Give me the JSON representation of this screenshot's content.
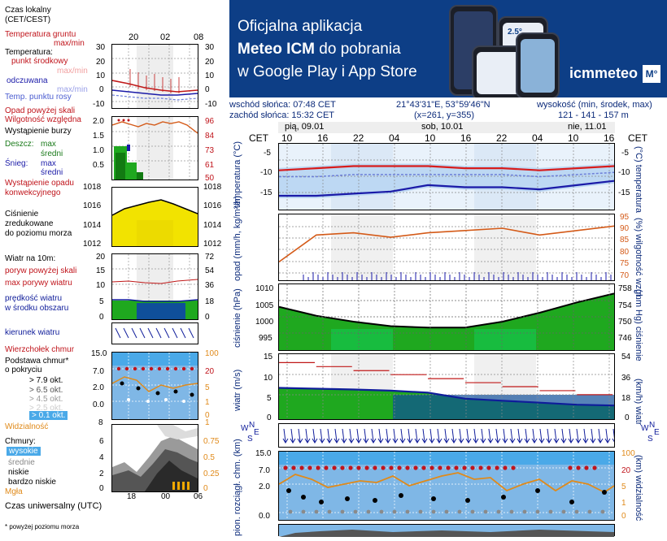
{
  "legend": {
    "local_time": "Czas lokalny",
    "local_time_zone": "(CET/CEST)",
    "hours_top": [
      "20",
      "02",
      "08"
    ],
    "ground_temp": "Temperatura gruntu",
    "ground_temp_unit": "max/min",
    "temperature": "Temperatura:",
    "center_point": "punkt środkowy",
    "center_point_sub": "max/min",
    "feels_like": "odczuwana",
    "feels_like_sub": "max/min",
    "dew_point": "Temp. punktu rosy",
    "temp_left_ticks": [
      "30",
      "20",
      "10",
      "0",
      "-10"
    ],
    "temp_right_ticks": [
      "30",
      "20",
      "10",
      "0",
      "-10"
    ],
    "precip_above": "Opad powyżej skali",
    "humidity": "Wilgotność względna",
    "storm": "Wystąpienie burzy",
    "rain": "Deszcz:",
    "rain_max": "max",
    "rain_mean": "średni",
    "snow": "Śnieg:",
    "snow_max": "max",
    "snow_mean": "średni",
    "convective": "Wystąpienie opadu",
    "convective2": "konwekcyjnego",
    "precip_left_ticks": [
      "2.0",
      "1.5",
      "1.0",
      "0.5"
    ],
    "precip_right_ticks": [
      "96",
      "84",
      "73",
      "61",
      "50"
    ],
    "pressure_ticks": [
      "1018",
      "1016",
      "1014",
      "1012"
    ],
    "pressure_line1": "Ciśnienie",
    "pressure_line2": "zredukowane",
    "pressure_line3": "do poziomu morza",
    "wind_10m": "Wiatr na 10m:",
    "gust_above": "poryw powyżej skali",
    "max_gust": "max porywy wiatru",
    "wind_speed": "prędkość wiatru",
    "wind_area": "w środku obszaru",
    "wind_left_ticks": [
      "20",
      "15",
      "10",
      "5",
      "0"
    ],
    "wind_right_ticks": [
      "72",
      "54",
      "36",
      "18",
      "0"
    ],
    "wind_dir": "kierunek wiatru",
    "cloud_top": "Wierzchołek chmur",
    "cloud_base1": "Podstawa chmur*",
    "cloud_base2": "o pokryciu",
    "okt_levels": [
      "> 7.9 okt.",
      "> 6.5 okt.",
      "> 4.5 okt.",
      "> 2.5 okt.",
      "> 0.1 okt."
    ],
    "cloud_left_ticks": [
      "15.0",
      "7.0",
      "2.0",
      "0.0"
    ],
    "cloud_right_ticks": [
      "100",
      "20",
      "5",
      "1",
      "0"
    ],
    "visibility": "Widzialność",
    "vis_left_tick": "8",
    "vis_right_tick": "1",
    "clouds": "Chmury:",
    "cloud_layers": [
      "wysokie",
      "średnie",
      "niskie",
      "bardzo niskie"
    ],
    "fog": "Mgła",
    "clouds_left_ticks": [
      "6",
      "4",
      "2",
      "0"
    ],
    "clouds_right_ticks": [
      "0.75",
      "0.5",
      "0.25",
      "0"
    ],
    "utc_label": "Czas uniwersalny (UTC)",
    "utc_ticks": [
      "18",
      "00",
      "06"
    ],
    "footnote": "* powyżej poziomu morza"
  },
  "banner": {
    "line1": "Oficjalna aplikacja",
    "line2_bold": "Meteo ICM",
    "line2_rest": " do pobrania",
    "line3": "w Google Play i App Store",
    "brand": "icmmeteo",
    "brand_badge": "M°",
    "phone_temp": "2.5°"
  },
  "meta": {
    "sunrise": "wschód słońca: 07:48 CET",
    "sunset": "zachód słońca: 15:32 CET",
    "coords": "21°43'31\"E, 53°59'46\"N",
    "grid": "(x=261, y=355)",
    "elevation_title": "wysokość (min, środek, max)",
    "elevation_values": "121 - 141 - 157 m"
  },
  "timeline": {
    "tz": "CET",
    "days": [
      "pią, 09.01",
      "sob, 10.01",
      "nie, 11.01"
    ],
    "hours": [
      "10",
      "16",
      "22",
      "04",
      "10",
      "16",
      "22",
      "04",
      "10",
      "16"
    ]
  },
  "panels": {
    "temperature": {
      "left_label": "temperatura",
      "left_unit": "(°C)",
      "right_label": "temperatura",
      "right_unit": "(°C)",
      "ticks_right": [
        "-5",
        "-10",
        "-15"
      ],
      "ticks_right2": [
        "-5",
        "-10",
        "-15"
      ]
    },
    "precip": {
      "left_label": "opad",
      "left_unit": "(mm/h, kg/m²/h)",
      "right_label": "wilgotność wzgl.",
      "right_unit": "(%)",
      "ticks_right": [
        "95",
        "90",
        "85",
        "80",
        "75",
        "70"
      ]
    },
    "pressure": {
      "left_label": "ciśnienie",
      "left_unit": "(hPa)",
      "right_label": "ciśnienie",
      "right_unit": "(mm Hg)",
      "ticks_left": [
        "1010",
        "1005",
        "1000",
        "995"
      ],
      "ticks_right": [
        "758",
        "754",
        "750",
        "746"
      ]
    },
    "wind": {
      "left_label": "wiatr",
      "left_unit": "(m/s)",
      "right_label": "wiatr",
      "right_unit": "(km/h)",
      "ticks_left": [
        "15",
        "10",
        "5",
        "0"
      ],
      "ticks_right": [
        "54",
        "36",
        "18",
        "0"
      ]
    },
    "compass": {
      "n": "N",
      "w": "W",
      "e": "E",
      "s": "S"
    },
    "cloudbase": {
      "left_label": "podst. chm",
      "left_unit": "(km)",
      "left_label2": "pion. rozciągł. chm.",
      "right_label": "widzialność",
      "right_unit": "(km)",
      "ticks_left": [
        "15.0",
        "7.0",
        "2.0",
        "0.0"
      ],
      "ticks_right": [
        "100",
        "20",
        "5",
        "1",
        "0"
      ]
    }
  },
  "chart_data": [
    {
      "type": "line",
      "title": "temperatura",
      "ylabel": "temperatura (°C)",
      "ylim": [
        -17,
        -3
      ],
      "x": [
        "10",
        "16",
        "22",
        "04",
        "10",
        "16",
        "22",
        "04",
        "10",
        "16"
      ],
      "series": [
        {
          "name": "punkt środkowy",
          "color": "#d81c1c",
          "values": [
            -8.5,
            -8.0,
            -7.5,
            -7.5,
            -7.5,
            -8.0,
            -8.0,
            -8.5,
            -8.0,
            -7.5
          ]
        },
        {
          "name": "odczuwana",
          "color": "#1a1aa8",
          "values": [
            -14.5,
            -14.5,
            -14.0,
            -13.5,
            -12.0,
            -12.5,
            -12.5,
            -13.0,
            -12.0,
            -11.0
          ]
        },
        {
          "name": "Temp. punktu rosy",
          "color": "#6d7fd8",
          "values": [
            -10.0,
            -10.0,
            -9.5,
            -9.5,
            -9.5,
            -9.5,
            -9.5,
            -10.0,
            -9.5,
            -9.0
          ]
        }
      ]
    },
    {
      "type": "line",
      "title": "opad / wilgotność",
      "ylabel": "wilgotność wzgl. (%)",
      "ylim": [
        70,
        95
      ],
      "x": [
        "10",
        "16",
        "22",
        "04",
        "10",
        "16",
        "22",
        "04",
        "10",
        "16"
      ],
      "series": [
        {
          "name": "Wilgotność względna",
          "color": "#d45a18",
          "values": [
            76,
            88,
            89,
            87,
            89,
            90,
            91,
            88,
            90,
            92
          ]
        }
      ]
    },
    {
      "type": "area",
      "title": "ciśnienie",
      "ylabel": "ciśnienie (hPa)",
      "ylim": [
        992,
        1012
      ],
      "x": [
        "10",
        "16",
        "22",
        "04",
        "10",
        "16",
        "22",
        "04",
        "10",
        "16"
      ],
      "series": [
        {
          "name": "ciśnienie",
          "color": "#1fa81f",
          "values": [
            1005.5,
            1002.5,
            1000.5,
            999.0,
            998.5,
            998.5,
            1000.5,
            1003.5,
            1007.0,
            1010.0
          ]
        }
      ]
    },
    {
      "type": "line",
      "title": "wiatr",
      "ylabel": "wiatr (m/s)",
      "ylim": [
        0,
        15
      ],
      "x": [
        "10",
        "16",
        "22",
        "04",
        "10",
        "16",
        "22",
        "04",
        "10",
        "16"
      ],
      "series": [
        {
          "name": "max porywy wiatru",
          "color": "#c01818",
          "values": [
            13.5,
            12.5,
            11.5,
            10.5,
            9.5,
            8.5,
            7.5,
            6.5,
            5.5,
            5.0
          ]
        },
        {
          "name": "prędkość wiatru",
          "color": "#0f1c9a",
          "values": [
            7.2,
            7.0,
            6.8,
            6.5,
            6.0,
            4.5,
            4.0,
            3.5,
            3.0,
            2.8
          ]
        }
      ]
    }
  ],
  "colors": {
    "banner_bg": "#0d3e86",
    "label_blue": "#0b2a7a",
    "label_red": "#c0141b",
    "label_green": "#1a7a1a",
    "night_band": "#e3e3e3",
    "pressure_fill": "#f2e300",
    "cloud_bg": "#7fb7e6",
    "temp_band": "#bdd8f3"
  }
}
